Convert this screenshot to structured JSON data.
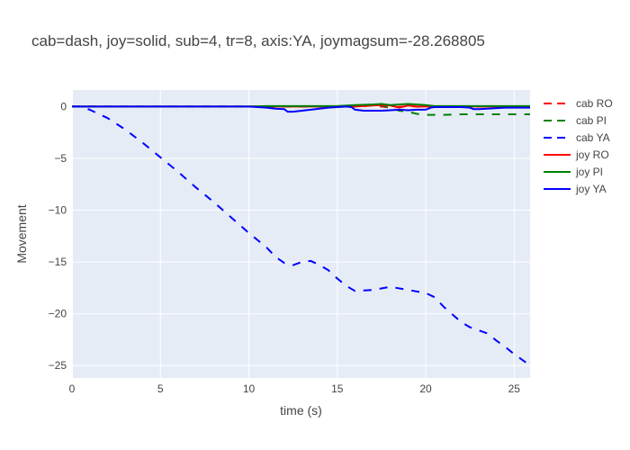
{
  "chart_data": {
    "type": "line",
    "title": "cab=dash, joy=solid, sub=4, tr=8, axis:YA, joymagsum=-28.268805",
    "xlabel": "time (s)",
    "ylabel": "Movement",
    "xlim": [
      0,
      25.9
    ],
    "ylim": [
      -26.2,
      1.6
    ],
    "xticks": [
      0,
      5,
      10,
      15,
      20,
      25
    ],
    "yticks": [
      0,
      -5,
      -10,
      -15,
      -20,
      -25
    ],
    "xtick_labels": [
      "0",
      "5",
      "10",
      "15",
      "20",
      "25"
    ],
    "ytick_labels": [
      "0",
      "−5",
      "−10",
      "−15",
      "−20",
      "−25"
    ],
    "grid": true,
    "legend_position": "right",
    "series": [
      {
        "name": "cab RO",
        "color": "#ff0000",
        "dash": "dash",
        "points": [
          [
            0,
            0
          ],
          [
            5,
            0
          ],
          [
            10,
            0
          ],
          [
            15,
            0
          ],
          [
            16,
            0
          ],
          [
            17,
            0.1
          ],
          [
            18,
            -0.1
          ],
          [
            19,
            0.05
          ],
          [
            20,
            -0.05
          ],
          [
            21,
            0
          ],
          [
            25.9,
            0
          ]
        ]
      },
      {
        "name": "cab PI",
        "color": "#008000",
        "dash": "dash",
        "points": [
          [
            0,
            0
          ],
          [
            5,
            0
          ],
          [
            10,
            0
          ],
          [
            15,
            0
          ],
          [
            16,
            0.1
          ],
          [
            17,
            0.2
          ],
          [
            17.5,
            0.1
          ],
          [
            18,
            -0.1
          ],
          [
            18.5,
            -0.4
          ],
          [
            19,
            -0.5
          ],
          [
            19.5,
            -0.7
          ],
          [
            20,
            -0.8
          ],
          [
            21,
            -0.8
          ],
          [
            22,
            -0.75
          ],
          [
            23,
            -0.75
          ],
          [
            24,
            -0.75
          ],
          [
            25,
            -0.75
          ],
          [
            25.9,
            -0.75
          ]
        ]
      },
      {
        "name": "cab YA",
        "color": "#0000ff",
        "dash": "dash",
        "points": [
          [
            0,
            0
          ],
          [
            0.5,
            0
          ],
          [
            1,
            -0.3
          ],
          [
            1.5,
            -0.7
          ],
          [
            2,
            -1.1
          ],
          [
            3,
            -2.2
          ],
          [
            4,
            -3.5
          ],
          [
            5,
            -4.9
          ],
          [
            6,
            -6.3
          ],
          [
            7,
            -7.8
          ],
          [
            8,
            -9.2
          ],
          [
            9,
            -10.7
          ],
          [
            10,
            -12.2
          ],
          [
            11,
            -13.6
          ],
          [
            11.5,
            -14.5
          ],
          [
            12,
            -15.1
          ],
          [
            12.5,
            -15.3
          ],
          [
            13,
            -15
          ],
          [
            13.5,
            -14.9
          ],
          [
            14,
            -15.3
          ],
          [
            14.5,
            -15.8
          ],
          [
            15,
            -16.6
          ],
          [
            15.5,
            -17.3
          ],
          [
            16,
            -17.8
          ],
          [
            17,
            -17.7
          ],
          [
            18,
            -17.4
          ],
          [
            19,
            -17.7
          ],
          [
            20,
            -18
          ],
          [
            20.5,
            -18.4
          ],
          [
            21,
            -19.3
          ],
          [
            22,
            -20.8
          ],
          [
            22.5,
            -21.3
          ],
          [
            23,
            -21.6
          ],
          [
            23.5,
            -21.9
          ],
          [
            24,
            -22.6
          ],
          [
            24.5,
            -23.2
          ],
          [
            25,
            -23.9
          ],
          [
            25.5,
            -24.5
          ],
          [
            25.9,
            -25
          ]
        ]
      },
      {
        "name": "joy RO",
        "color": "#ff0000",
        "dash": "solid",
        "points": [
          [
            0,
            0
          ],
          [
            10,
            0
          ],
          [
            15,
            0
          ],
          [
            16,
            0
          ],
          [
            17,
            0.1
          ],
          [
            17.5,
            0.15
          ],
          [
            18,
            0.1
          ],
          [
            18.5,
            -0.1
          ],
          [
            19,
            0.1
          ],
          [
            19.5,
            0
          ],
          [
            20,
            0
          ],
          [
            21,
            0
          ],
          [
            25.9,
            0
          ]
        ]
      },
      {
        "name": "joy PI",
        "color": "#008000",
        "dash": "solid",
        "points": [
          [
            0,
            0
          ],
          [
            10,
            0
          ],
          [
            11,
            0.05
          ],
          [
            12,
            0.05
          ],
          [
            13,
            0.05
          ],
          [
            14,
            0.05
          ],
          [
            15,
            0.05
          ],
          [
            16,
            0.15
          ],
          [
            17,
            0.2
          ],
          [
            17.5,
            0.25
          ],
          [
            18,
            0.15
          ],
          [
            18.5,
            0.2
          ],
          [
            19,
            0.25
          ],
          [
            19.5,
            0.2
          ],
          [
            20,
            0.15
          ],
          [
            20.5,
            0.05
          ],
          [
            21,
            0.05
          ],
          [
            25.9,
            0.05
          ]
        ]
      },
      {
        "name": "joy YA",
        "color": "#0000ff",
        "dash": "solid",
        "points": [
          [
            0,
            0
          ],
          [
            5,
            0
          ],
          [
            10,
            0
          ],
          [
            10.5,
            -0.05
          ],
          [
            11,
            -0.1
          ],
          [
            11.5,
            -0.2
          ],
          [
            12,
            -0.25
          ],
          [
            12.2,
            -0.5
          ],
          [
            12.5,
            -0.5
          ],
          [
            13,
            -0.4
          ],
          [
            13.5,
            -0.3
          ],
          [
            14,
            -0.2
          ],
          [
            14.5,
            -0.1
          ],
          [
            15,
            -0.05
          ],
          [
            15.5,
            0
          ],
          [
            15.8,
            -0.05
          ],
          [
            16,
            -0.3
          ],
          [
            16.5,
            -0.4
          ],
          [
            17,
            -0.4
          ],
          [
            17.5,
            -0.4
          ],
          [
            18,
            -0.35
          ],
          [
            18.5,
            -0.3
          ],
          [
            19,
            -0.35
          ],
          [
            19.5,
            -0.3
          ],
          [
            20,
            -0.3
          ],
          [
            20.3,
            -0.1
          ],
          [
            20.5,
            -0.05
          ],
          [
            21,
            -0.05
          ],
          [
            22,
            -0.05
          ],
          [
            22.5,
            -0.1
          ],
          [
            22.7,
            -0.25
          ],
          [
            23,
            -0.25
          ],
          [
            23.5,
            -0.2
          ],
          [
            24,
            -0.15
          ],
          [
            24.5,
            -0.1
          ],
          [
            25,
            -0.1
          ],
          [
            25.9,
            -0.1
          ]
        ]
      }
    ]
  }
}
